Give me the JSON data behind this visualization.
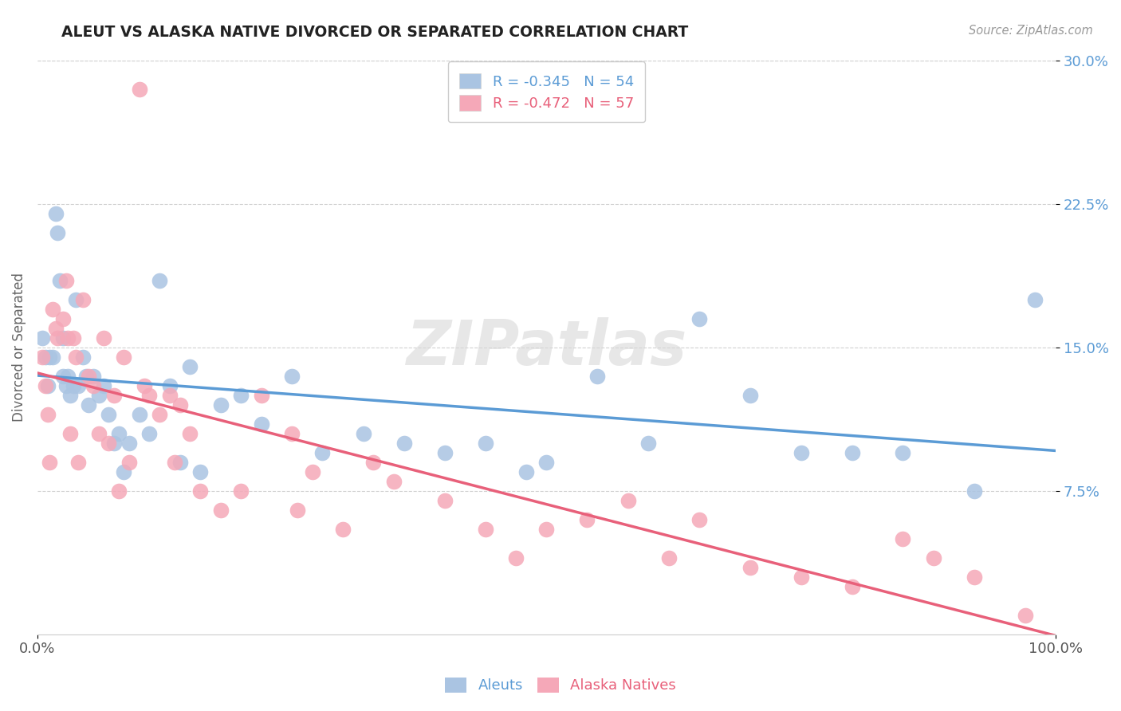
{
  "title": "ALEUT VS ALASKA NATIVE DIVORCED OR SEPARATED CORRELATION CHART",
  "source": "Source: ZipAtlas.com",
  "ylabel": "Divorced or Separated",
  "xlim": [
    0.0,
    1.0
  ],
  "ylim": [
    0.0,
    0.3
  ],
  "yticks": [
    0.075,
    0.15,
    0.225,
    0.3
  ],
  "ytick_labels": [
    "7.5%",
    "15.0%",
    "22.5%",
    "30.0%"
  ],
  "xtick_positions": [
    0.0,
    1.0
  ],
  "xtick_labels": [
    "0.0%",
    "100.0%"
  ],
  "aleuts_color": "#aac4e2",
  "alaska_natives_color": "#f5a8b8",
  "trendline_aleuts_color": "#5b9bd5",
  "trendline_alaska_color": "#e8607a",
  "background_color": "#ffffff",
  "grid_color": "#d0d0d0",
  "watermark": "ZIPatlas",
  "legend_R1": "-0.345",
  "legend_N1": "54",
  "legend_R2": "-0.472",
  "legend_N2": "57",
  "aleuts_x": [
    0.005,
    0.008,
    0.01,
    0.012,
    0.015,
    0.018,
    0.02,
    0.022,
    0.025,
    0.025,
    0.028,
    0.03,
    0.032,
    0.035,
    0.038,
    0.04,
    0.045,
    0.048,
    0.05,
    0.055,
    0.06,
    0.065,
    0.07,
    0.075,
    0.08,
    0.085,
    0.09,
    0.1,
    0.11,
    0.12,
    0.13,
    0.14,
    0.15,
    0.16,
    0.18,
    0.2,
    0.22,
    0.25,
    0.28,
    0.32,
    0.36,
    0.4,
    0.44,
    0.48,
    0.5,
    0.55,
    0.6,
    0.65,
    0.7,
    0.75,
    0.8,
    0.85,
    0.92,
    0.98
  ],
  "aleuts_y": [
    0.155,
    0.145,
    0.13,
    0.145,
    0.145,
    0.22,
    0.21,
    0.185,
    0.155,
    0.135,
    0.13,
    0.135,
    0.125,
    0.13,
    0.175,
    0.13,
    0.145,
    0.135,
    0.12,
    0.135,
    0.125,
    0.13,
    0.115,
    0.1,
    0.105,
    0.085,
    0.1,
    0.115,
    0.105,
    0.185,
    0.13,
    0.09,
    0.14,
    0.085,
    0.12,
    0.125,
    0.11,
    0.135,
    0.095,
    0.105,
    0.1,
    0.095,
    0.1,
    0.085,
    0.09,
    0.135,
    0.1,
    0.165,
    0.125,
    0.095,
    0.095,
    0.095,
    0.075,
    0.175
  ],
  "alaska_natives_x": [
    0.005,
    0.008,
    0.01,
    0.012,
    0.015,
    0.018,
    0.02,
    0.025,
    0.028,
    0.03,
    0.032,
    0.035,
    0.038,
    0.04,
    0.045,
    0.05,
    0.055,
    0.06,
    0.065,
    0.07,
    0.075,
    0.08,
    0.085,
    0.09,
    0.1,
    0.105,
    0.11,
    0.12,
    0.13,
    0.135,
    0.14,
    0.15,
    0.16,
    0.18,
    0.2,
    0.22,
    0.25,
    0.255,
    0.27,
    0.3,
    0.33,
    0.35,
    0.4,
    0.44,
    0.47,
    0.5,
    0.54,
    0.58,
    0.62,
    0.65,
    0.7,
    0.75,
    0.8,
    0.85,
    0.88,
    0.92,
    0.97
  ],
  "alaska_natives_y": [
    0.145,
    0.13,
    0.115,
    0.09,
    0.17,
    0.16,
    0.155,
    0.165,
    0.185,
    0.155,
    0.105,
    0.155,
    0.145,
    0.09,
    0.175,
    0.135,
    0.13,
    0.105,
    0.155,
    0.1,
    0.125,
    0.075,
    0.145,
    0.09,
    0.285,
    0.13,
    0.125,
    0.115,
    0.125,
    0.09,
    0.12,
    0.105,
    0.075,
    0.065,
    0.075,
    0.125,
    0.105,
    0.065,
    0.085,
    0.055,
    0.09,
    0.08,
    0.07,
    0.055,
    0.04,
    0.055,
    0.06,
    0.07,
    0.04,
    0.06,
    0.035,
    0.03,
    0.025,
    0.05,
    0.04,
    0.03,
    0.01
  ]
}
